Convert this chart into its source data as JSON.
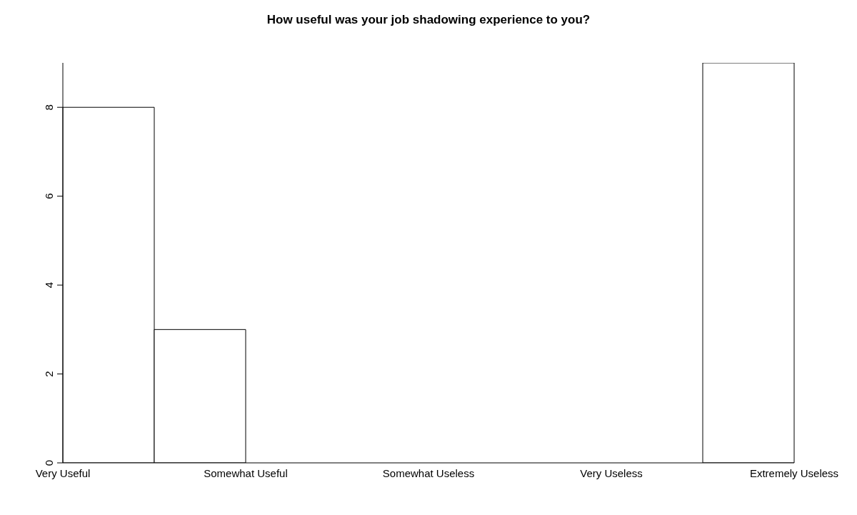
{
  "chart_data": {
    "type": "bar",
    "title": "How useful was your job shadowing experience to you?",
    "categories": [
      null,
      null,
      null,
      null,
      null,
      null,
      null,
      null
    ],
    "values": [
      8,
      3,
      0,
      0,
      0,
      0,
      0,
      9
    ],
    "color": "#ffffff",
    "annotations": [
      "Very Useful",
      "Somewhat Useful",
      "Somewhat Useless",
      "Very Useless",
      "Extremely Useless"
    ],
    "ylim": [
      0,
      9
    ],
    "yticks": [
      0,
      2,
      4,
      6,
      8
    ],
    "grid": false,
    "legend": false
  }
}
